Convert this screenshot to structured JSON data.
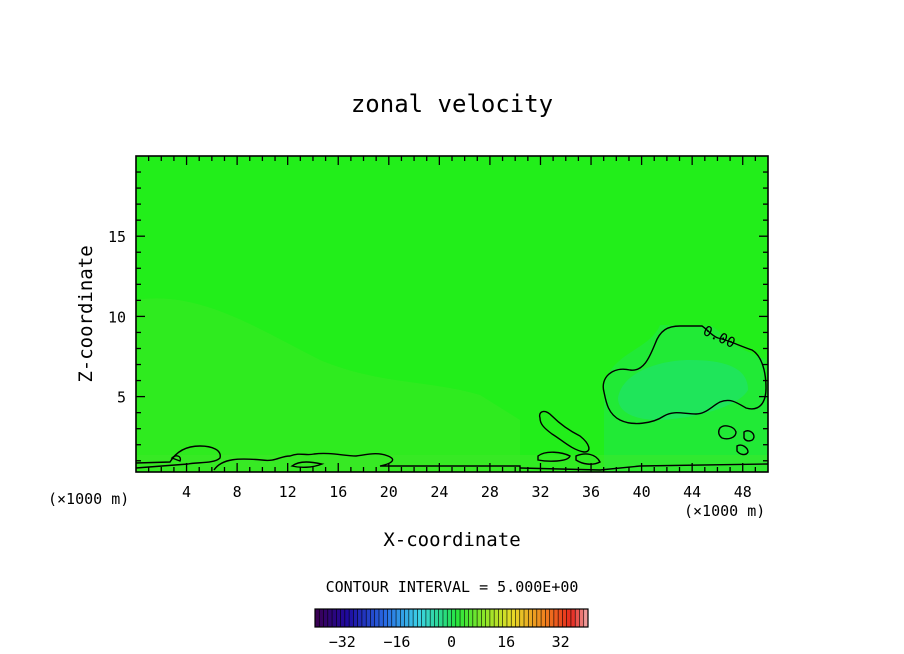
{
  "chart_data": {
    "type": "heatmap",
    "title": "zonal velocity",
    "xlabel": "X-coordinate",
    "ylabel": "Z-coordinate",
    "x_unit_label": "(×1000 m)",
    "xlim": [
      0,
      50
    ],
    "ylim": [
      0.3,
      20
    ],
    "x_ticks": [
      4,
      8,
      12,
      16,
      20,
      24,
      28,
      32,
      36,
      40,
      44,
      48
    ],
    "x_tick_labels": [
      "4",
      "8",
      "12",
      "16",
      "20",
      "24",
      "28",
      "32",
      "36",
      "40",
      "44",
      "48"
    ],
    "y_ticks": [
      5,
      10,
      15
    ],
    "y_tick_labels": [
      "5",
      "10",
      "15"
    ],
    "contour_level_label": "0.00",
    "contour_interval_label": "CONTOUR INTERVAL = 5.000E+00",
    "colorbar": {
      "range": [
        -40,
        40
      ],
      "ticks": [
        -32,
        -16,
        0,
        16,
        32
      ],
      "tick_labels": [
        "−32",
        "−16",
        "0",
        "16",
        "32"
      ],
      "n_bins": 64
    },
    "background_color": "#22ee1a",
    "field_note_values": {
      "dominant_speed": 0,
      "region_east_negative_zone": [
        38,
        50,
        0.3,
        9.3
      ]
    }
  }
}
